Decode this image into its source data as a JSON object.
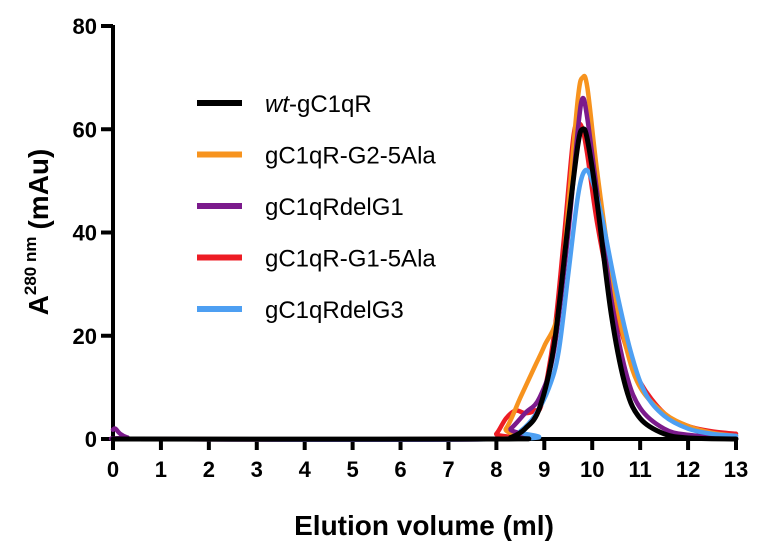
{
  "chart_data": {
    "type": "line",
    "title": "",
    "xlabel": "Elution volume (ml)",
    "ylabel": {
      "base": "A",
      "superscript": "280 nm",
      "unit": "(mAu)"
    },
    "xlim": [
      0,
      13
    ],
    "ylim": [
      0,
      80
    ],
    "x_ticks": [
      "0",
      "1",
      "2",
      "3",
      "4",
      "5",
      "6",
      "7",
      "8",
      "9",
      "10",
      "11",
      "12",
      "13"
    ],
    "y_ticks": [
      "0",
      "20",
      "40",
      "60",
      "80"
    ],
    "grid": false,
    "legend_position": "top-left",
    "series": [
      {
        "name": "wt-gC1qR",
        "name_italic_part": "wt",
        "name_rest": "-gC1qR",
        "color": "#000000",
        "points": [
          [
            0,
            0
          ],
          [
            8.0,
            0
          ],
          [
            8.3,
            0.3
          ],
          [
            8.6,
            2
          ],
          [
            8.9,
            6
          ],
          [
            9.2,
            18
          ],
          [
            9.5,
            42
          ],
          [
            9.7,
            57
          ],
          [
            9.8,
            60
          ],
          [
            9.9,
            58
          ],
          [
            10.1,
            46
          ],
          [
            10.4,
            24
          ],
          [
            10.7,
            10
          ],
          [
            11.0,
            4
          ],
          [
            11.5,
            1
          ],
          [
            12.0,
            0.2
          ],
          [
            13,
            0
          ]
        ]
      },
      {
        "name": "gC1qR-G2-5Ala",
        "color": "#f7931e",
        "points": [
          [
            0,
            0
          ],
          [
            7.9,
            0
          ],
          [
            8.2,
            2
          ],
          [
            8.5,
            8
          ],
          [
            8.8,
            14
          ],
          [
            9.0,
            18
          ],
          [
            9.3,
            25
          ],
          [
            9.5,
            45
          ],
          [
            9.7,
            66
          ],
          [
            9.8,
            70
          ],
          [
            9.9,
            68
          ],
          [
            10.1,
            52
          ],
          [
            10.4,
            32
          ],
          [
            10.7,
            18
          ],
          [
            11.0,
            10
          ],
          [
            11.5,
            5
          ],
          [
            12.0,
            2.5
          ],
          [
            12.5,
            1.2
          ],
          [
            13,
            0.6
          ]
        ]
      },
      {
        "name": "gC1qRdelG1",
        "color": "#7b1a8c",
        "points": [
          [
            0,
            1.8
          ],
          [
            0.05,
            2
          ],
          [
            0.15,
            1
          ],
          [
            0.3,
            0.3
          ],
          [
            0.6,
            0
          ],
          [
            8.0,
            0
          ],
          [
            8.3,
            2
          ],
          [
            8.6,
            5
          ],
          [
            8.9,
            8
          ],
          [
            9.2,
            17
          ],
          [
            9.5,
            40
          ],
          [
            9.7,
            60
          ],
          [
            9.8,
            66
          ],
          [
            9.9,
            62
          ],
          [
            10.1,
            48
          ],
          [
            10.4,
            27
          ],
          [
            10.7,
            13
          ],
          [
            11.0,
            6
          ],
          [
            11.5,
            2
          ],
          [
            12.0,
            0.8
          ],
          [
            13,
            0.2
          ]
        ]
      },
      {
        "name": "gC1qR-G1-5Ala",
        "color": "#ed1c24",
        "points": [
          [
            0,
            0
          ],
          [
            7.8,
            0
          ],
          [
            8.0,
            1
          ],
          [
            8.2,
            4
          ],
          [
            8.4,
            5.5
          ],
          [
            8.6,
            5
          ],
          [
            8.8,
            5.5
          ],
          [
            8.95,
            7
          ],
          [
            9.2,
            20
          ],
          [
            9.4,
            38
          ],
          [
            9.6,
            58
          ],
          [
            9.7,
            61
          ],
          [
            9.8,
            60
          ],
          [
            9.9,
            55
          ],
          [
            10.1,
            42
          ],
          [
            10.4,
            28
          ],
          [
            10.7,
            18
          ],
          [
            11.0,
            11
          ],
          [
            11.5,
            5
          ],
          [
            12.0,
            2.5
          ],
          [
            12.5,
            1.5
          ],
          [
            13,
            1
          ]
        ]
      },
      {
        "name": "gC1qRdelG3",
        "color": "#4d9ff2",
        "points": [
          [
            0,
            0
          ],
          [
            8.2,
            0
          ],
          [
            8.5,
            1.5
          ],
          [
            8.8,
            4.5
          ],
          [
            9.1,
            10
          ],
          [
            9.3,
            17
          ],
          [
            9.5,
            32
          ],
          [
            9.7,
            47
          ],
          [
            9.85,
            52
          ],
          [
            10.0,
            50
          ],
          [
            10.2,
            43
          ],
          [
            10.5,
            29
          ],
          [
            10.8,
            17
          ],
          [
            11.1,
            9
          ],
          [
            11.5,
            4.5
          ],
          [
            12.0,
            2
          ],
          [
            12.5,
            1
          ],
          [
            13,
            0.6
          ]
        ]
      }
    ]
  }
}
